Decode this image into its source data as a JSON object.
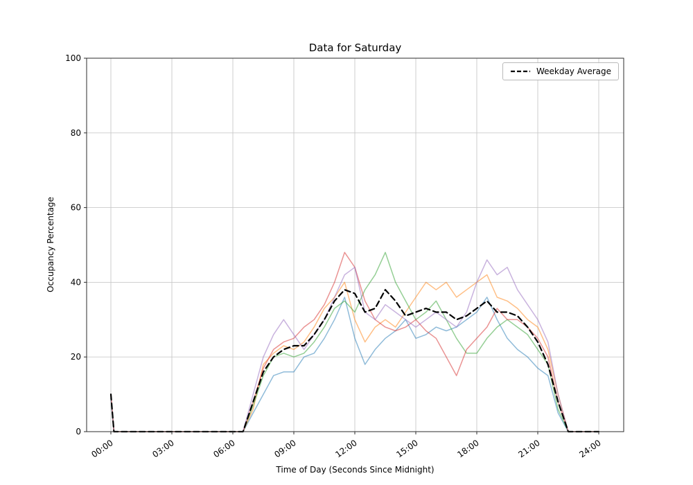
{
  "chart_data": {
    "type": "line",
    "title": "Data for Saturday",
    "xlabel": "Time of Day (Seconds Since Midnight)",
    "ylabel": "Occupancy Percentage",
    "grid": true,
    "ylim": [
      0,
      100
    ],
    "y_ticks": [
      0,
      20,
      40,
      60,
      80,
      100
    ],
    "x_tick_hours": [
      0,
      3,
      6,
      9,
      12,
      15,
      18,
      21,
      24
    ],
    "x_tick_labels": [
      "00:00",
      "03:00",
      "06:00",
      "09:00",
      "12:00",
      "15:00",
      "18:00",
      "21:00",
      "24:00"
    ],
    "legend": {
      "position": "upper right",
      "entries": [
        {
          "label": "Weekday Average",
          "color": "#000000",
          "style": "dashed"
        }
      ]
    },
    "x_hours": [
      0,
      0.15,
      0.5,
      1,
      1.5,
      2,
      2.5,
      3,
      3.5,
      4,
      4.5,
      5,
      5.5,
      6,
      6.5,
      7,
      7.5,
      8,
      8.5,
      9,
      9.5,
      10,
      10.5,
      11,
      11.5,
      12,
      12.5,
      13,
      13.5,
      14,
      14.5,
      15,
      15.5,
      16,
      16.5,
      17,
      17.5,
      18,
      18.5,
      19,
      19.5,
      20,
      20.5,
      21,
      21.5,
      22,
      22.5,
      23,
      23.5,
      24
    ],
    "series": [
      {
        "name": "day-blue",
        "color": "#1f77b4",
        "opacity": 0.5,
        "dashed": false,
        "width": 1.5,
        "values": [
          9,
          0,
          0,
          0,
          0,
          0,
          0,
          0,
          0,
          0,
          0,
          0,
          0,
          0,
          0,
          5,
          10,
          15,
          16,
          16,
          20,
          21,
          25,
          30,
          36,
          25,
          18,
          22,
          25,
          27,
          30,
          25,
          26,
          28,
          27,
          28,
          30,
          32,
          36,
          30,
          25,
          22,
          20,
          17,
          15,
          5,
          0,
          0,
          0,
          0
        ]
      },
      {
        "name": "day-orange",
        "color": "#ff7f0e",
        "opacity": 0.5,
        "dashed": false,
        "width": 1.5,
        "values": [
          10,
          0,
          0,
          0,
          0,
          0,
          0,
          0,
          0,
          0,
          0,
          0,
          0,
          0,
          0,
          6,
          18,
          21,
          23,
          22,
          24,
          28,
          33,
          36,
          40,
          30,
          24,
          28,
          30,
          28,
          32,
          36,
          40,
          38,
          40,
          36,
          38,
          40,
          42,
          36,
          35,
          33,
          30,
          28,
          22,
          10,
          0,
          0,
          0,
          0
        ]
      },
      {
        "name": "day-green",
        "color": "#2ca02c",
        "opacity": 0.5,
        "dashed": false,
        "width": 1.5,
        "values": [
          9,
          0,
          0,
          0,
          0,
          0,
          0,
          0,
          0,
          0,
          0,
          0,
          0,
          0,
          0,
          7,
          15,
          20,
          21,
          20,
          21,
          24,
          28,
          33,
          35,
          32,
          38,
          42,
          48,
          40,
          35,
          30,
          32,
          35,
          30,
          25,
          21,
          21,
          25,
          28,
          30,
          28,
          26,
          22,
          18,
          6,
          0,
          0,
          0,
          0
        ]
      },
      {
        "name": "day-red",
        "color": "#d62728",
        "opacity": 0.5,
        "dashed": false,
        "width": 1.5,
        "values": [
          10,
          0,
          0,
          0,
          0,
          0,
          0,
          0,
          0,
          0,
          0,
          0,
          0,
          0,
          0,
          8,
          17,
          22,
          24,
          25,
          28,
          30,
          34,
          40,
          48,
          44,
          35,
          30,
          28,
          27,
          28,
          30,
          27,
          25,
          20,
          15,
          22,
          25,
          28,
          33,
          30,
          30,
          28,
          25,
          20,
          8,
          0,
          0,
          0,
          0
        ]
      },
      {
        "name": "day-purple",
        "color": "#9467bd",
        "opacity": 0.5,
        "dashed": false,
        "width": 1.5,
        "values": [
          9,
          0,
          0,
          0,
          0,
          0,
          0,
          0,
          0,
          0,
          0,
          0,
          0,
          0,
          0,
          10,
          20,
          26,
          30,
          26,
          22,
          26,
          30,
          36,
          42,
          44,
          32,
          30,
          34,
          32,
          30,
          28,
          30,
          32,
          30,
          28,
          32,
          40,
          46,
          42,
          44,
          38,
          34,
          30,
          24,
          10,
          0,
          0,
          0,
          0
        ]
      },
      {
        "name": "weekday-average",
        "label": "Weekday Average",
        "color": "#000000",
        "opacity": 1,
        "dashed": true,
        "width": 2.2,
        "values": [
          10,
          0,
          0,
          0,
          0,
          0,
          0,
          0,
          0,
          0,
          0,
          0,
          0,
          0,
          0,
          8,
          16,
          20,
          22,
          23,
          23,
          26,
          30,
          35,
          38,
          37,
          32,
          33,
          38,
          35,
          31,
          32,
          33,
          32,
          32,
          30,
          31,
          33,
          35,
          32,
          32,
          31,
          28,
          24,
          18,
          8,
          0,
          0,
          0,
          0
        ]
      }
    ]
  }
}
